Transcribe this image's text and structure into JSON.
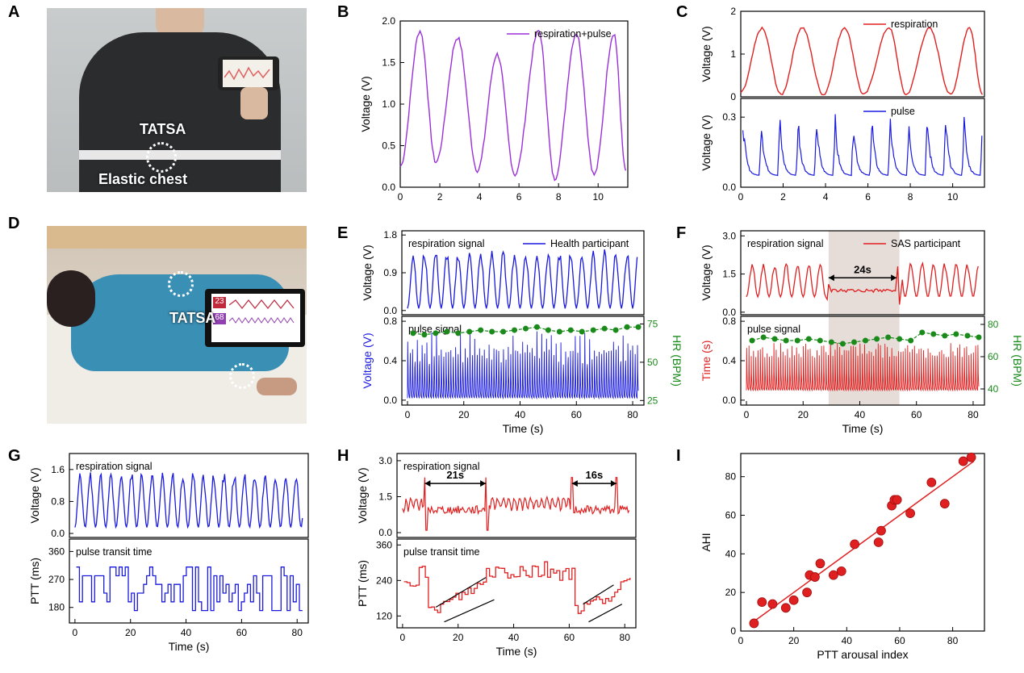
{
  "panels": {
    "A": "A",
    "B": "B",
    "C": "C",
    "D": "D",
    "E": "E",
    "F": "F",
    "G": "G",
    "H": "H",
    "I": "I"
  },
  "photoA": {
    "device_label": "TATSA",
    "strap_label": "Elastic chest"
  },
  "photoD": {
    "device_label": "TATSA",
    "screen_values": [
      "23",
      "68"
    ]
  },
  "colors": {
    "purple": "#9b30d9",
    "red": "#e02020",
    "blue": "#1a1adf",
    "green": "#1a8a1a"
  },
  "chart_data": [
    {
      "id": "B",
      "type": "line",
      "xlim": [
        0,
        11.5
      ],
      "ylim": [
        0,
        2.0
      ],
      "xticks": [
        "0",
        "2",
        "4",
        "6",
        "8",
        "10"
      ],
      "yticks": [
        "0.0",
        "0.5",
        "1.0",
        "1.5",
        "2.0"
      ],
      "ylabel": "Voltage (V)",
      "xlabel": "",
      "series": [
        {
          "name": "respiration+pulse",
          "color": "#9b30d9",
          "peaks_x": [
            1.0,
            2.9,
            4.9,
            7.0,
            8.9,
            10.8
          ],
          "peaks_y": [
            1.88,
            1.8,
            1.6,
            1.88,
            1.85,
            1.85
          ],
          "troughs_x": [
            0.0,
            1.8,
            3.9,
            5.8,
            7.8,
            9.8,
            11.4
          ],
          "troughs_y": [
            0.25,
            0.3,
            0.2,
            0.15,
            0.1,
            0.15,
            0.2
          ]
        }
      ]
    },
    {
      "id": "C1",
      "type": "line",
      "xlim": [
        0,
        11.5
      ],
      "ylim": [
        0,
        2.0
      ],
      "yticks": [
        "0",
        "1",
        "2"
      ],
      "ylabel": "Voltage (V)",
      "series": [
        {
          "name": "respiration",
          "color": "#e02020",
          "peaks_x": [
            1.0,
            2.9,
            4.9,
            7.0,
            8.9,
            10.8
          ],
          "peaks_y": [
            1.6,
            1.62,
            1.62,
            1.62,
            1.6,
            1.62
          ],
          "troughs_x": [
            0.0,
            1.9,
            3.9,
            5.8,
            7.8,
            9.9,
            11.4
          ],
          "troughs_y": [
            0.1,
            0.05,
            0.05,
            0.05,
            0.05,
            0.05,
            0.05
          ]
        }
      ]
    },
    {
      "id": "C2",
      "type": "line",
      "xlim": [
        0,
        11.5
      ],
      "ylim": [
        0,
        0.38
      ],
      "xticks": [
        "0",
        "2",
        "4",
        "6",
        "8",
        "10"
      ],
      "yticks": [
        "0.0",
        "0.3"
      ],
      "ylabel": "Voltage (V)",
      "series": [
        {
          "name": "pulse",
          "color": "#1a1adf",
          "period": 0.87,
          "peak": 0.3,
          "base": 0.05
        }
      ]
    },
    {
      "id": "E1",
      "type": "line",
      "xlim": [
        -2,
        84
      ],
      "ylim": [
        -0.1,
        1.9
      ],
      "yticks": [
        "0.0",
        "0.9",
        "1.8"
      ],
      "ylabel": "Voltage (V)",
      "annotation": "respiration signal",
      "series": [
        {
          "name": "Health participant",
          "color": "#1a1adf",
          "period": 4.0,
          "peak": 1.4,
          "base": 0.05
        }
      ]
    },
    {
      "id": "E2",
      "type": "line",
      "xlim": [
        -2,
        84
      ],
      "ylim": [
        -0.05,
        0.85
      ],
      "xticks": [
        "0",
        "20",
        "40",
        "60",
        "80"
      ],
      "yticks": [
        "0.0",
        "0.4",
        "0.8"
      ],
      "ylabel": "Voltage (V)",
      "xlabel": "Time (s)",
      "y2label": "HR (BPM)",
      "y2ticks": [
        "25",
        "50",
        "75"
      ],
      "annotation": "pulse signal",
      "series": [
        {
          "name": "pulse",
          "color": "#1a1adf",
          "period": 0.85,
          "peak": 0.65,
          "base": 0.02
        },
        {
          "name": "HR",
          "color": "#1a8a1a",
          "axis": "y2",
          "x": [
            2,
            6,
            10,
            14,
            18,
            22,
            26,
            30,
            34,
            38,
            42,
            46,
            50,
            54,
            58,
            62,
            66,
            70,
            74,
            78,
            82
          ],
          "y": [
            69,
            68,
            69,
            70,
            69,
            70,
            71,
            70,
            70,
            71,
            72,
            73,
            71,
            70,
            71,
            70,
            71,
            72,
            71,
            73,
            73
          ]
        }
      ]
    },
    {
      "id": "F1",
      "type": "line",
      "xlim": [
        -2,
        84
      ],
      "ylim": [
        -0.1,
        3.2
      ],
      "yticks": [
        "0.0",
        "1.5",
        "3.0"
      ],
      "ylabel": "Voltage (V)",
      "annotation": "respiration signal",
      "shade": [
        29,
        54
      ],
      "arrow_label": "24s",
      "series": [
        {
          "name": "SAS participant",
          "color": "#e02020",
          "period": 4.0,
          "peak": 1.9,
          "base": 0.6
        }
      ]
    },
    {
      "id": "F2",
      "type": "line",
      "xlim": [
        -2,
        84
      ],
      "ylim": [
        -0.05,
        0.85
      ],
      "xticks": [
        "0",
        "20",
        "40",
        "60",
        "80"
      ],
      "yticks": [
        "0.0",
        "0.4",
        "0.8"
      ],
      "ylabel": "Time (s)",
      "xlabel": "Time (s)",
      "y2label": "HR (BPM)",
      "y2ticks": [
        "40",
        "60",
        "80"
      ],
      "annotation": "pulse signal",
      "shade": [
        29,
        54
      ],
      "series": [
        {
          "name": "pulse",
          "color": "#e02020",
          "period": 0.8,
          "peak": 0.55,
          "base": 0.1
        },
        {
          "name": "HR",
          "color": "#1a8a1a",
          "axis": "y2",
          "x": [
            2,
            6,
            10,
            14,
            18,
            22,
            26,
            30,
            34,
            38,
            42,
            46,
            50,
            54,
            58,
            62,
            66,
            70,
            74,
            78,
            82
          ],
          "y": [
            70,
            72,
            71,
            70,
            70,
            71,
            70,
            69,
            68,
            69,
            70,
            71,
            72,
            71,
            70,
            75,
            74,
            73,
            74,
            73,
            72
          ]
        }
      ]
    },
    {
      "id": "G1",
      "type": "line",
      "xlim": [
        -2,
        84
      ],
      "ylim": [
        -0.1,
        2.0
      ],
      "yticks": [
        "0.0",
        "0.8",
        "1.6"
      ],
      "ylabel": "Voltage (V)",
      "annotation": "respiration signal",
      "series": [
        {
          "name": "respiration",
          "color": "#1a1adf",
          "period": 3.7,
          "peak": 1.5,
          "base": 0.15
        }
      ]
    },
    {
      "id": "G2",
      "type": "line",
      "xlim": [
        -2,
        84
      ],
      "ylim": [
        130,
        400
      ],
      "xticks": [
        "0",
        "20",
        "40",
        "60",
        "80"
      ],
      "yticks": [
        "180",
        "270",
        "360"
      ],
      "ylabel": "PTT (ms)",
      "xlabel": "Time (s)",
      "annotation": "pulse transit time",
      "series": [
        {
          "name": "PTT",
          "color": "#1a1adf",
          "step": true
        }
      ]
    },
    {
      "id": "H1",
      "type": "line",
      "xlim": [
        -2,
        84
      ],
      "ylim": [
        -0.2,
        3.3
      ],
      "yticks": [
        "0.0",
        "1.5",
        "3.0"
      ],
      "ylabel": "Voltage (V)",
      "annotation": "respiration signal",
      "arrows": [
        {
          "x1": 8,
          "x2": 30,
          "label": "21s"
        },
        {
          "x1": 61,
          "x2": 77,
          "label": "16s"
        }
      ],
      "series": [
        {
          "name": "respiration",
          "color": "#e02020"
        }
      ]
    },
    {
      "id": "H2",
      "type": "line",
      "xlim": [
        -2,
        84
      ],
      "ylim": [
        80,
        380
      ],
      "xticks": [
        "0",
        "20",
        "40",
        "60",
        "80"
      ],
      "yticks": [
        "120",
        "240",
        "360"
      ],
      "ylabel": "PTT (ms)",
      "xlabel": "Time (s)",
      "annotation": "pulse transit time",
      "series": [
        {
          "name": "PTT",
          "color": "#e02020",
          "step": true
        }
      ]
    },
    {
      "id": "I",
      "type": "scatter",
      "xlim": [
        0,
        92
      ],
      "ylim": [
        0,
        92
      ],
      "xticks": [
        "0",
        "20",
        "40",
        "60",
        "80"
      ],
      "yticks": [
        "0",
        "20",
        "40",
        "60",
        "80"
      ],
      "xlabel": "PTT arousal index",
      "ylabel": "AHI",
      "series": [
        {
          "name": "points",
          "color": "#e02020",
          "x": [
            5,
            8,
            12,
            17,
            20,
            25,
            26,
            28,
            30,
            35,
            38,
            43,
            52,
            53,
            57,
            58,
            59,
            64,
            72,
            77,
            84,
            87
          ],
          "y": [
            4,
            15,
            14,
            12,
            16,
            20,
            29,
            28,
            35,
            29,
            31,
            45,
            46,
            52,
            65,
            68,
            68,
            61,
            77,
            66,
            88,
            90
          ]
        }
      ],
      "fit": {
        "x": [
          5,
          88
        ],
        "y": [
          5,
          88
        ]
      }
    }
  ]
}
